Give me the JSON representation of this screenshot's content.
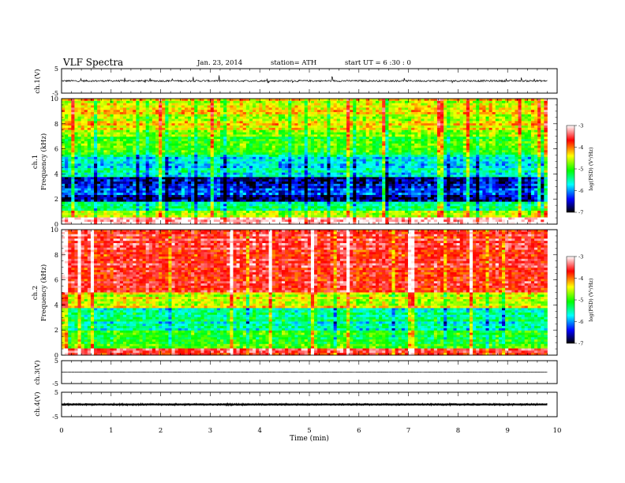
{
  "header": {
    "title": "VLF  Spectra",
    "date": "Jan. 23, 2014",
    "station": "station= ATH",
    "start": "start  UT =   6  :30 : 0"
  },
  "chart_data": [
    {
      "type": "line",
      "panel": "ch1-waveform",
      "ylabel": "ch.1(V)",
      "ylim": [
        -5,
        5
      ],
      "yticks": [
        "5",
        "-5"
      ],
      "x_range": [
        0,
        9.8
      ],
      "baseline": 0,
      "noise_amplitude": 0.35,
      "line_color": "#000000"
    },
    {
      "type": "heatmap",
      "panel": "ch1-spectrogram",
      "ylabel_top": "ch.1",
      "ylabel": "Frequency  (kHz)",
      "ylim": [
        0,
        10
      ],
      "yticks": [
        "0",
        "2",
        "4",
        "6",
        "8",
        "10"
      ],
      "x_range": [
        0,
        9.8
      ],
      "profile_bands": [
        {
          "f": [
            0,
            0.5
          ],
          "level": -3.2
        },
        {
          "f": [
            0.5,
            1.0
          ],
          "level": -4.6
        },
        {
          "f": [
            1.0,
            1.8
          ],
          "level": -5.6
        },
        {
          "f": [
            1.8,
            3.8
          ],
          "level": -6.6
        },
        {
          "f": [
            3.8,
            5.5
          ],
          "level": -5.9
        },
        {
          "f": [
            5.5,
            7.5
          ],
          "level": -5.1
        },
        {
          "f": [
            7.5,
            10
          ],
          "level": -4.6
        }
      ],
      "colorbar": {
        "label": "log(PSD) (V²/Hz)",
        "range": [
          -7,
          -3
        ],
        "ticks": [
          "-3",
          "-4",
          "-5",
          "-6",
          "-7"
        ],
        "colors": [
          "#ffffff",
          "#ff0000",
          "#ffff00",
          "#00ff00",
          "#00ffff",
          "#0000ff",
          "#000000"
        ]
      }
    },
    {
      "type": "heatmap",
      "panel": "ch2-spectrogram",
      "ylabel_top": "ch.2",
      "ylabel": "Frequency  (kHz)",
      "ylim": [
        0,
        10
      ],
      "yticks": [
        "0",
        "2",
        "4",
        "6",
        "8",
        "10"
      ],
      "x_range": [
        0,
        9.8
      ],
      "profile_bands": [
        {
          "f": [
            0,
            0.6
          ],
          "level": -3.6
        },
        {
          "f": [
            0.6,
            2.0
          ],
          "level": -5.2
        },
        {
          "f": [
            2.0,
            3.8
          ],
          "level": -5.7
        },
        {
          "f": [
            3.8,
            5.0
          ],
          "level": -4.7
        },
        {
          "f": [
            5.0,
            10
          ],
          "level": -3.7
        }
      ],
      "colorbar": {
        "label": "log(PSD) (V²/Hz)",
        "range": [
          -7,
          -3
        ],
        "ticks": [
          "-3",
          "-4",
          "-5",
          "-6",
          "-7"
        ],
        "colors": [
          "#ffffff",
          "#ff0000",
          "#ffff00",
          "#00ff00",
          "#00ffff",
          "#0000ff",
          "#000000"
        ]
      }
    },
    {
      "type": "line",
      "panel": "ch3-waveform",
      "ylabel": "ch.3(V)",
      "ylim": [
        -5,
        5
      ],
      "yticks": [
        "5",
        "-5"
      ],
      "x_range": [
        0,
        9.8
      ],
      "baseline": 0,
      "noise_amplitude": 0.05,
      "line_color": "#000000"
    },
    {
      "type": "line",
      "panel": "ch4-waveform",
      "ylabel": "ch.4(V)",
      "ylim": [
        -5,
        5
      ],
      "yticks": [
        "5",
        "-5"
      ],
      "x_range": [
        0,
        9.8
      ],
      "baseline": 0,
      "noise_amplitude": 0.35,
      "line_color": "#000000"
    }
  ],
  "x_axis": {
    "label": "Time  (min)",
    "ticks": [
      "0",
      "1",
      "2",
      "3",
      "4",
      "5",
      "6",
      "7",
      "8",
      "9",
      "10"
    ],
    "range": [
      0,
      10
    ]
  }
}
